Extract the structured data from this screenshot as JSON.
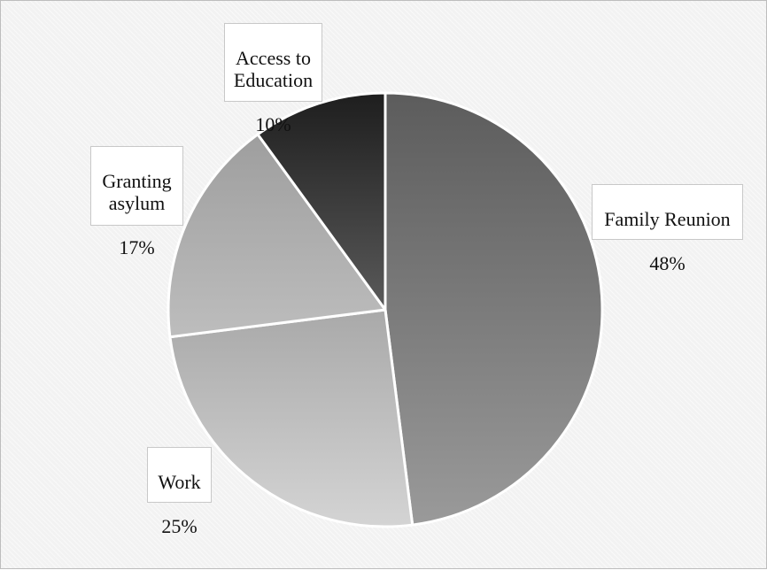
{
  "chart_data": {
    "type": "pie",
    "start_angle_deg": 0,
    "direction": "clockwise",
    "slices": [
      {
        "name": "Family Reunion",
        "label": "Family Reunion",
        "pct_label": "48%",
        "value": 48,
        "color_start": "#5c5c5c",
        "color_end": "#9a9a9a"
      },
      {
        "name": "Work",
        "label": "Work",
        "pct_label": "25%",
        "value": 25,
        "color_start": "#a9a9a9",
        "color_end": "#d4d4d4"
      },
      {
        "name": "Granting asylum",
        "label": "Granting\nasylum",
        "pct_label": "17%",
        "value": 17,
        "color_start": "#9e9e9e",
        "color_end": "#bdbdbd"
      },
      {
        "name": "Access to Education",
        "label": "Access to\nEducation",
        "pct_label": "10%",
        "value": 10,
        "color_start": "#1e1e1e",
        "color_end": "#5a5a5a"
      }
    ]
  }
}
